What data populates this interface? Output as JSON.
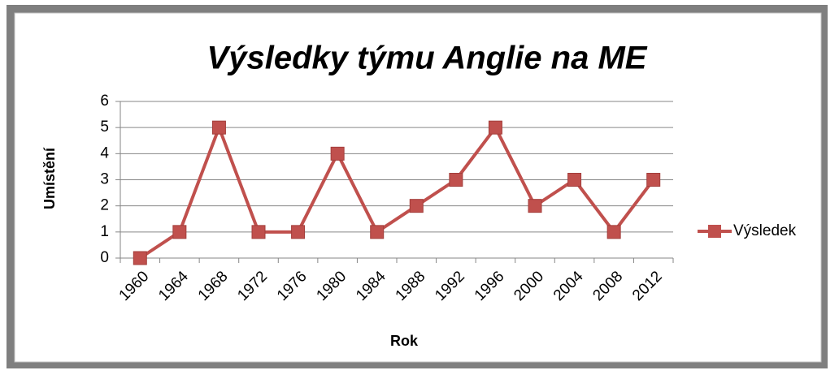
{
  "chart_data": {
    "type": "line",
    "title": "Výsledky týmu Anglie na ME",
    "x_label": "Rok",
    "y_label": "Umístění",
    "categories": [
      "1960",
      "1964",
      "1968",
      "1972",
      "1976",
      "1980",
      "1984",
      "1988",
      "1992",
      "1996",
      "2000",
      "2004",
      "2008",
      "2012"
    ],
    "series": [
      {
        "name": "Výsledek",
        "color": "#c0504d",
        "values": [
          0,
          1,
          5,
          1,
          1,
          4,
          1,
          2,
          3,
          5,
          2,
          3,
          1,
          3
        ]
      }
    ],
    "ylim": [
      0,
      6
    ],
    "yticks": [
      0,
      1,
      2,
      3,
      4,
      5,
      6
    ],
    "grid": true,
    "legend": "right"
  }
}
